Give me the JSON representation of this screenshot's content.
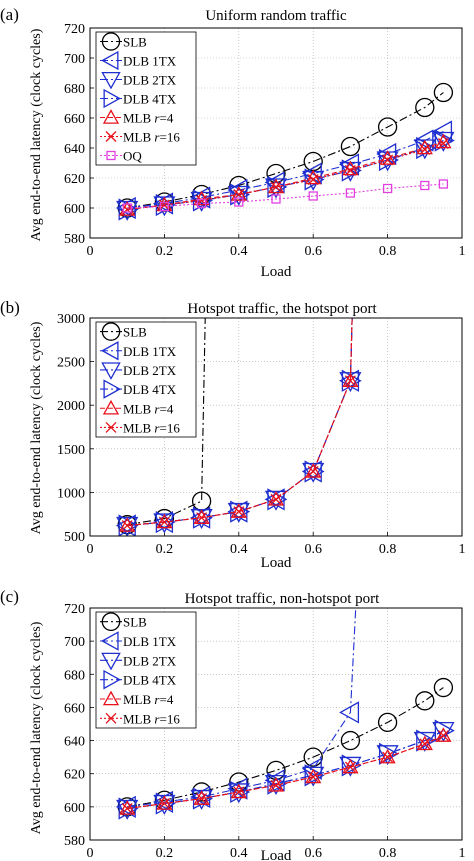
{
  "shared": {
    "ylabel": "Avg end-to-end latency (clock cycles)",
    "xlabel": "Load",
    "xticks": [
      "0",
      "0.2",
      "0.4",
      "0.6",
      "0.8",
      "1"
    ],
    "colors": {
      "SLB": "#000000",
      "DLB": "#1f2fd0",
      "MLB": "#e8101a",
      "OQ": "#e040e0"
    }
  },
  "chart_data": [
    {
      "type": "line",
      "panel_label": "(a)",
      "title": "Uniform random traffic",
      "xlabel": "Load",
      "ylabel": "Avg end-to-end latency (clock cycles)",
      "xlim": [
        0,
        1
      ],
      "ylim": [
        580,
        720
      ],
      "yticks": [
        "580",
        "600",
        "620",
        "640",
        "660",
        "680",
        "700",
        "720"
      ],
      "grid": true,
      "legend_position": "top-left",
      "legend": [
        {
          "label": "SLB",
          "name": "SLB"
        },
        {
          "label": "DLB 1TX",
          "name": "DLB 1TX"
        },
        {
          "label": "DLB 2TX",
          "name": "DLB 2TX"
        },
        {
          "label": "DLB 4TX",
          "name": "DLB 4TX"
        },
        {
          "label": "MLB ",
          "italic": "r",
          "suffix": "=4",
          "name": "MLB r=4"
        },
        {
          "label": "MLB ",
          "italic": "r",
          "suffix": "=16",
          "name": "MLB r=16"
        },
        {
          "label": "OQ",
          "name": "OQ"
        }
      ],
      "x": [
        0.1,
        0.2,
        0.3,
        0.4,
        0.5,
        0.6,
        0.7,
        0.8,
        0.9,
        0.95
      ],
      "series": [
        {
          "name": "SLB",
          "values": [
            600,
            604,
            609,
            615,
            623,
            631,
            641,
            654,
            667,
            677
          ]
        },
        {
          "name": "DLB 1TX",
          "values": [
            600,
            603,
            607,
            612,
            617,
            623,
            629,
            636,
            645,
            651
          ]
        },
        {
          "name": "DLB 2TX",
          "values": [
            599,
            602,
            605,
            609,
            614,
            619,
            625,
            632,
            640,
            645
          ]
        },
        {
          "name": "DLB 4TX",
          "values": [
            599,
            602,
            605,
            609,
            614,
            619,
            625,
            632,
            640,
            645
          ]
        },
        {
          "name": "MLB r=4",
          "values": [
            599,
            602,
            606,
            609,
            614,
            620,
            626,
            633,
            640,
            644
          ]
        },
        {
          "name": "MLB r=16",
          "values": [
            599,
            602,
            605,
            609,
            614,
            619,
            625,
            632,
            639,
            643
          ]
        },
        {
          "name": "OQ",
          "values": [
            600,
            601,
            603,
            604,
            606,
            608,
            610,
            613,
            615,
            616
          ]
        }
      ]
    },
    {
      "type": "line",
      "panel_label": "(b)",
      "title": "Hotspot traffic, the hotspot port",
      "xlabel": "Load",
      "ylabel": "Avg end-to-end latency (clock cycles)",
      "xlim": [
        0,
        1
      ],
      "ylim": [
        500,
        3000
      ],
      "yticks": [
        "500",
        "1000",
        "1500",
        "2000",
        "2500",
        "3000"
      ],
      "grid": true,
      "legend_position": "top-left",
      "legend": [
        {
          "label": "SLB",
          "name": "SLB"
        },
        {
          "label": "DLB 1TX",
          "name": "DLB 1TX"
        },
        {
          "label": "DLB 2TX",
          "name": "DLB 2TX"
        },
        {
          "label": "DLB 4TX",
          "name": "DLB 4TX"
        },
        {
          "label": "MLB ",
          "italic": "r",
          "suffix": "=4",
          "name": "MLB r=4"
        },
        {
          "label": "MLB ",
          "italic": "r",
          "suffix": "=16",
          "name": "MLB r=16"
        }
      ],
      "series": [
        {
          "name": "SLB",
          "x": [
            0.1,
            0.2,
            0.3
          ],
          "values": [
            630,
            700,
            900
          ],
          "asymptote_x": 0.31
        },
        {
          "name": "DLB 1TX",
          "x": [
            0.1,
            0.2,
            0.3,
            0.4,
            0.5,
            0.6,
            0.7
          ],
          "values": [
            620,
            660,
            710,
            780,
            920,
            1240,
            2280
          ],
          "asymptote_x": 0.705
        },
        {
          "name": "DLB 2TX",
          "x": [
            0.1,
            0.2,
            0.3,
            0.4,
            0.5,
            0.6,
            0.7
          ],
          "values": [
            620,
            660,
            710,
            780,
            920,
            1240,
            2280
          ],
          "asymptote_x": 0.705
        },
        {
          "name": "DLB 4TX",
          "x": [
            0.1,
            0.2,
            0.3,
            0.4,
            0.5,
            0.6,
            0.7
          ],
          "values": [
            620,
            660,
            710,
            780,
            920,
            1240,
            2280
          ],
          "asymptote_x": 0.705
        },
        {
          "name": "MLB r=4",
          "x": [
            0.1,
            0.2,
            0.3,
            0.4,
            0.5,
            0.6,
            0.7
          ],
          "values": [
            620,
            660,
            710,
            780,
            920,
            1240,
            2280
          ],
          "asymptote_x": 0.705
        },
        {
          "name": "MLB r=16",
          "x": [
            0.1,
            0.2,
            0.3,
            0.4,
            0.5,
            0.6,
            0.7
          ],
          "values": [
            620,
            660,
            710,
            780,
            920,
            1240,
            2280
          ],
          "asymptote_x": 0.705
        }
      ]
    },
    {
      "type": "line",
      "panel_label": "(c)",
      "title": "Hotspot traffic, non-hotspot port",
      "xlabel": "Load",
      "ylabel": "Avg end-to-end latency (clock cycles)",
      "xlim": [
        0,
        1
      ],
      "ylim": [
        580,
        720
      ],
      "yticks": [
        "580",
        "600",
        "620",
        "640",
        "660",
        "680",
        "700",
        "720"
      ],
      "grid": true,
      "legend_position": "top-left",
      "legend": [
        {
          "label": "SLB",
          "name": "SLB"
        },
        {
          "label": "DLB 1TX",
          "name": "DLB 1TX"
        },
        {
          "label": "DLB 2TX",
          "name": "DLB 2TX"
        },
        {
          "label": "DLB 4TX",
          "name": "DLB 4TX"
        },
        {
          "label": "MLB ",
          "italic": "r",
          "suffix": "=4",
          "name": "MLB r=4"
        },
        {
          "label": "MLB ",
          "italic": "r",
          "suffix": "=16",
          "name": "MLB r=16"
        }
      ],
      "series": [
        {
          "name": "SLB",
          "x": [
            0.1,
            0.2,
            0.3,
            0.4,
            0.5,
            0.6,
            0.7,
            0.8,
            0.9,
            0.95
          ],
          "values": [
            600,
            604,
            609,
            615,
            622,
            630,
            640,
            651,
            664,
            672
          ]
        },
        {
          "name": "DLB 1TX",
          "x": [
            0.1,
            0.2,
            0.3,
            0.4,
            0.5,
            0.6,
            0.7
          ],
          "values": [
            600,
            603,
            606,
            611,
            616,
            623,
            657
          ],
          "asymptote_x": 0.715
        },
        {
          "name": "DLB 2TX",
          "x": [
            0.1,
            0.2,
            0.3,
            0.4,
            0.5,
            0.6,
            0.7,
            0.8,
            0.9,
            0.95
          ],
          "values": [
            599,
            602,
            605,
            609,
            614,
            619,
            625,
            632,
            640,
            646
          ]
        },
        {
          "name": "DLB 4TX",
          "x": [
            0.1,
            0.2,
            0.3,
            0.4,
            0.5,
            0.6,
            0.7,
            0.8,
            0.9,
            0.95
          ],
          "values": [
            599,
            602,
            605,
            609,
            614,
            619,
            625,
            632,
            640,
            646
          ]
        },
        {
          "name": "MLB r=4",
          "x": [
            0.1,
            0.2,
            0.3,
            0.4,
            0.5,
            0.6,
            0.7,
            0.8,
            0.9,
            0.95
          ],
          "values": [
            599,
            602,
            605,
            609,
            613,
            618,
            624,
            630,
            638,
            643
          ]
        },
        {
          "name": "MLB r=16",
          "x": [
            0.1,
            0.2,
            0.3,
            0.4,
            0.5,
            0.6,
            0.7,
            0.8,
            0.9,
            0.95
          ],
          "values": [
            599,
            602,
            605,
            609,
            613,
            618,
            624,
            630,
            638,
            643
          ]
        }
      ]
    }
  ]
}
